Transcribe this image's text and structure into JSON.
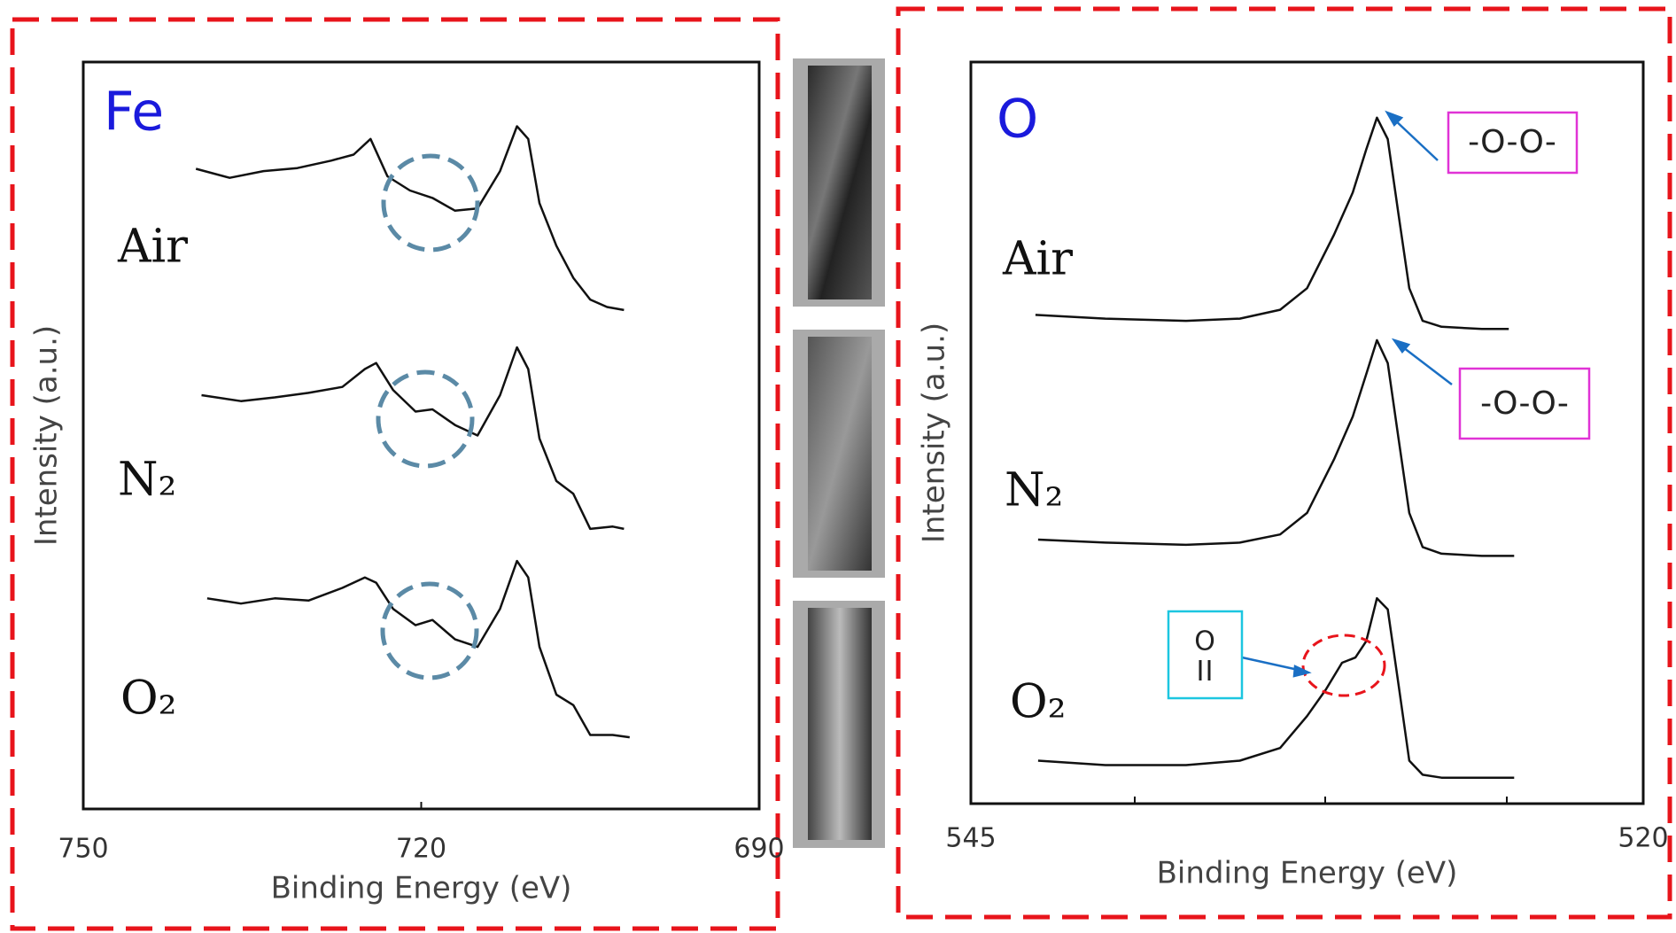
{
  "chart_data": [
    {
      "type": "line",
      "title": "Fe",
      "xlabel": "Binding Energy (eV)",
      "ylabel": "Intensity (a.u.)",
      "xlim": [
        750,
        690
      ],
      "xticks": [
        750,
        720,
        690
      ],
      "ylim": [
        0,
        100
      ],
      "color": "#111111",
      "title_color": "#1a1adc",
      "series": [
        {
          "name": "Air",
          "x": [
            740,
            737,
            734,
            731,
            728,
            726,
            724.5,
            723,
            721,
            719,
            717,
            715,
            713,
            711.5,
            710.5,
            709.5,
            708,
            706.5,
            705,
            703.5,
            702
          ],
          "values": [
            85.7,
            84.5,
            85.4,
            85.8,
            86.8,
            87.6,
            89.7,
            84.7,
            82.8,
            81.8,
            80.1,
            80.4,
            85.4,
            91.4,
            89.7,
            81.1,
            75.4,
            71.1,
            68.2,
            67.2,
            66.8
          ]
        },
        {
          "name": "N₂",
          "x": [
            739.5,
            736,
            733,
            730,
            727,
            725,
            724,
            722.5,
            720.5,
            719,
            717,
            715,
            713,
            711.5,
            710.5,
            709.5,
            708,
            706.5,
            705,
            703,
            702
          ],
          "values": [
            55.4,
            54.6,
            55.1,
            55.7,
            56.5,
            58.9,
            59.7,
            56.1,
            53.2,
            53.5,
            51.4,
            50.0,
            55.4,
            61.8,
            58.9,
            49.6,
            43.9,
            42.2,
            37.5,
            37.8,
            37.5
          ]
        },
        {
          "name": "O₂",
          "x": [
            739,
            736,
            733,
            730,
            727,
            725,
            724,
            722.5,
            720.5,
            719,
            717,
            715,
            713,
            711.5,
            710.5,
            709.5,
            708,
            706.5,
            705,
            703,
            701.5
          ],
          "values": [
            28.2,
            27.5,
            28.2,
            27.9,
            29.6,
            31.0,
            30.3,
            26.8,
            24.6,
            25.3,
            22.7,
            21.7,
            26.8,
            33.2,
            31.0,
            21.7,
            15.3,
            13.9,
            9.9,
            9.9,
            9.6
          ]
        }
      ]
    },
    {
      "type": "line",
      "title": "O",
      "xlabel": "Binding Energy (eV)",
      "ylabel": "Intensity (a.u.)",
      "xlim": [
        545,
        520
      ],
      "xticks": [
        545,
        520
      ],
      "ylim": [
        0,
        100
      ],
      "color": "#111111",
      "title_color": "#1a1adc",
      "annotations": [
        "-O-O-",
        "-O-O-",
        "O"
      ],
      "series": [
        {
          "name": "Air",
          "x": [
            542.6,
            540,
            537,
            535,
            533.5,
            532.5,
            531.5,
            530.8,
            530.3,
            529.9,
            529.5,
            529.1,
            528.7,
            528.2,
            527.5,
            526,
            525
          ],
          "values": [
            65.9,
            65.4,
            65.1,
            65.4,
            66.6,
            69.5,
            76.7,
            82.4,
            88.2,
            92.5,
            89.6,
            79.5,
            69.5,
            65.1,
            64.3,
            64.0,
            64.0
          ]
        },
        {
          "name": "N₂",
          "x": [
            542.5,
            540,
            537,
            535,
            533.5,
            532.5,
            531.5,
            530.8,
            530.3,
            529.9,
            529.5,
            529.1,
            528.7,
            528.2,
            527.5,
            526,
            524.8
          ],
          "values": [
            35.6,
            35.2,
            34.9,
            35.2,
            36.3,
            39.2,
            46.4,
            52.2,
            57.9,
            62.5,
            59.4,
            49.3,
            39.2,
            34.6,
            33.7,
            33.4,
            33.4
          ]
        },
        {
          "name": "O₂",
          "x": [
            542.5,
            540,
            537,
            535,
            533.5,
            532.5,
            531.8,
            531.2,
            530.7,
            530.3,
            529.9,
            529.5,
            529.1,
            528.7,
            528.2,
            527.5,
            526,
            524.8
          ],
          "values": [
            5.8,
            5.2,
            5.2,
            5.8,
            7.5,
            11.8,
            15.4,
            19.0,
            19.7,
            21.9,
            27.7,
            26.2,
            16.1,
            5.8,
            3.9,
            3.5,
            3.5,
            3.5
          ]
        }
      ]
    }
  ]
}
